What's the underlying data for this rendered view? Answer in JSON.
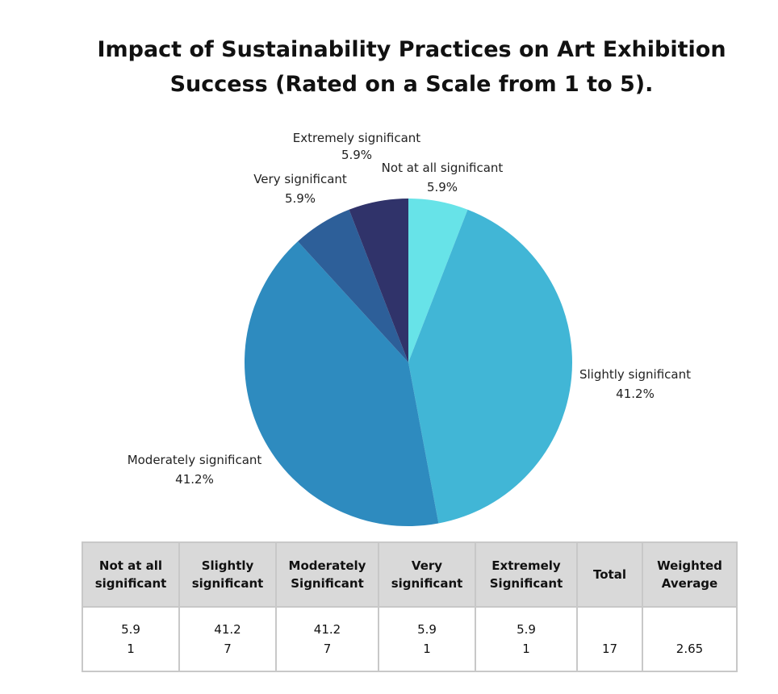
{
  "chart_data": {
    "type": "pie",
    "title_lines": [
      "Impact of Sustainability Practices on Art Exhibition",
      "Success (Rated on a Scale from 1 to 5)."
    ],
    "slices": [
      {
        "label": "Not at all significant",
        "value": 5.9,
        "display": "5.9%",
        "color": "#67e3e8"
      },
      {
        "label": "Slightly significant",
        "value": 41.2,
        "display": "41.2%",
        "color": "#41b6d6"
      },
      {
        "label": "Moderately significant",
        "value": 41.2,
        "display": "41.2%",
        "color": "#2e8bbf"
      },
      {
        "label": "Very significant",
        "value": 5.9,
        "display": "5.9%",
        "color": "#2d5f99"
      },
      {
        "label": "Extremely significant",
        "value": 5.9,
        "display": "5.9%",
        "color": "#30336a"
      }
    ]
  },
  "table": {
    "headers": [
      [
        "Not at all",
        "significant"
      ],
      [
        "Slightly",
        "significant"
      ],
      [
        "Moderately",
        "Significant"
      ],
      [
        "Very",
        "significant"
      ],
      [
        "Extremely",
        "Significant"
      ],
      [
        "Total"
      ],
      [
        "Weighted",
        "Average"
      ]
    ],
    "cells": [
      {
        "percent": "5.9",
        "count": "1"
      },
      {
        "percent": "41.2",
        "count": "7"
      },
      {
        "percent": "41.2",
        "count": "7"
      },
      {
        "percent": "5.9",
        "count": "1"
      },
      {
        "percent": "5.9",
        "count": "1"
      }
    ],
    "total": "17",
    "weighted_average": "2.65"
  }
}
